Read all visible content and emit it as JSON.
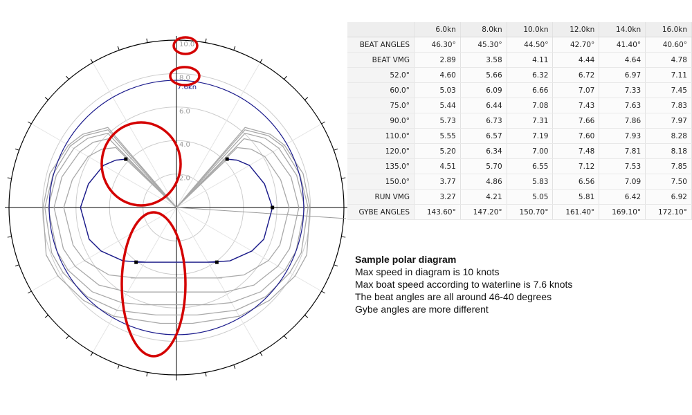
{
  "chart_data": {
    "type": "polar",
    "max_speed_label": "10.0",
    "hull_speed_label": "7.6kn",
    "ring_labels": [
      "10.0",
      "8.0",
      "6.0",
      "4.0",
      "2.0"
    ],
    "wind_speeds": [
      "6.0kn",
      "8.0kn",
      "10.0kn",
      "12.0kn",
      "14.0kn",
      "16.0kn"
    ],
    "angles": [
      52,
      60,
      75,
      90,
      110,
      120,
      135,
      150
    ],
    "boat_speeds": [
      [
        4.6,
        5.66,
        6.32,
        6.72,
        6.97,
        7.11
      ],
      [
        5.03,
        6.09,
        6.66,
        7.07,
        7.33,
        7.45
      ],
      [
        5.44,
        6.44,
        7.08,
        7.43,
        7.63,
        7.83
      ],
      [
        5.73,
        6.73,
        7.31,
        7.66,
        7.86,
        7.97
      ],
      [
        5.55,
        6.57,
        7.19,
        7.6,
        7.93,
        8.28
      ],
      [
        5.2,
        6.34,
        7.0,
        7.48,
        7.81,
        8.18
      ],
      [
        4.51,
        5.7,
        6.55,
        7.12,
        7.53,
        7.85
      ],
      [
        3.77,
        4.86,
        5.83,
        6.56,
        7.09,
        7.5
      ]
    ],
    "beat_angles": [
      46.3,
      45.3,
      44.5,
      42.7,
      41.4,
      40.6
    ],
    "beat_vmg": [
      2.89,
      3.58,
      4.11,
      4.44,
      4.64,
      4.78
    ],
    "run_vmg": [
      3.27,
      4.21,
      5.05,
      5.81,
      6.42,
      6.92
    ],
    "gybe_angles": [
      143.6,
      147.2,
      150.7,
      161.4,
      169.1,
      172.1
    ],
    "r_max": 10,
    "hull_speed": 7.6,
    "colors": {
      "curves": "#a9a9a9",
      "hull_circle": "#1a1a8c",
      "grid": "#cccccc",
      "axes": "#000000",
      "annotation": "#d40000"
    }
  },
  "table": {
    "header": [
      "",
      "6.0kn",
      "8.0kn",
      "10.0kn",
      "12.0kn",
      "14.0kn",
      "16.0kn"
    ],
    "rows": [
      {
        "label": "BEAT ANGLES",
        "values": [
          "46.30°",
          "45.30°",
          "44.50°",
          "42.70°",
          "41.40°",
          "40.60°"
        ]
      },
      {
        "label": "BEAT VMG",
        "values": [
          "2.89",
          "3.58",
          "4.11",
          "4.44",
          "4.64",
          "4.78"
        ]
      },
      {
        "label": "52.0°",
        "values": [
          "4.60",
          "5.66",
          "6.32",
          "6.72",
          "6.97",
          "7.11"
        ]
      },
      {
        "label": "60.0°",
        "values": [
          "5.03",
          "6.09",
          "6.66",
          "7.07",
          "7.33",
          "7.45"
        ]
      },
      {
        "label": "75.0°",
        "values": [
          "5.44",
          "6.44",
          "7.08",
          "7.43",
          "7.63",
          "7.83"
        ]
      },
      {
        "label": "90.0°",
        "values": [
          "5.73",
          "6.73",
          "7.31",
          "7.66",
          "7.86",
          "7.97"
        ]
      },
      {
        "label": "110.0°",
        "values": [
          "5.55",
          "6.57",
          "7.19",
          "7.60",
          "7.93",
          "8.28"
        ]
      },
      {
        "label": "120.0°",
        "values": [
          "5.20",
          "6.34",
          "7.00",
          "7.48",
          "7.81",
          "8.18"
        ]
      },
      {
        "label": "135.0°",
        "values": [
          "4.51",
          "5.70",
          "6.55",
          "7.12",
          "7.53",
          "7.85"
        ]
      },
      {
        "label": "150.0°",
        "values": [
          "3.77",
          "4.86",
          "5.83",
          "6.56",
          "7.09",
          "7.50"
        ]
      },
      {
        "label": "RUN VMG",
        "values": [
          "3.27",
          "4.21",
          "5.05",
          "5.81",
          "6.42",
          "6.92"
        ]
      },
      {
        "label": "GYBE ANGLES",
        "values": [
          "143.60°",
          "147.20°",
          "150.70°",
          "161.40°",
          "169.10°",
          "172.10°"
        ]
      }
    ]
  },
  "notes": {
    "title": "Sample polar diagram",
    "lines": [
      "Max speed in diagram is 10 knots",
      "Max boat speed according to waterline is 7.6 knots",
      "The beat angles are all around 46-40 degrees",
      "Gybe angles are more different"
    ]
  }
}
